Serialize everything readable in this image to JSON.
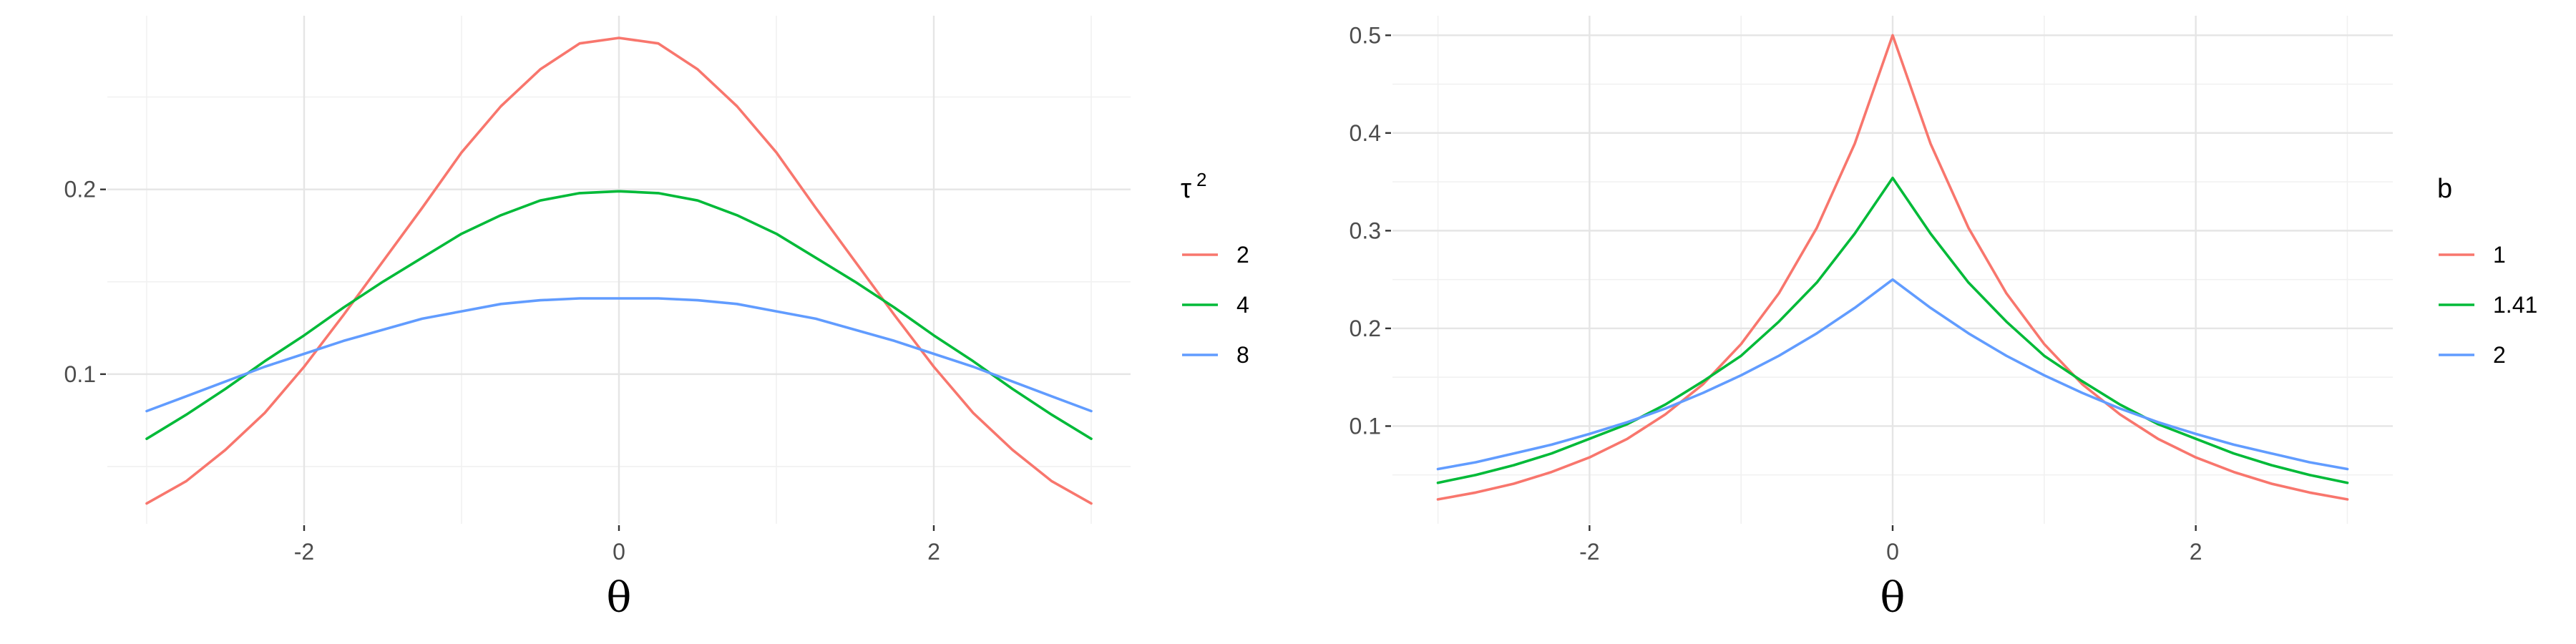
{
  "chart_data": [
    {
      "type": "line",
      "title": "",
      "xlabel": "θ",
      "ylabel": "",
      "xlim": [
        -3.25,
        3.25
      ],
      "ylim": [
        0.019,
        0.294
      ],
      "x_ticks": [
        -2,
        0,
        2
      ],
      "x_tick_labels": [
        "-2",
        "0",
        "2"
      ],
      "y_ticks": [
        0.1,
        0.2
      ],
      "y_tick_labels": [
        "0.1",
        "0.2"
      ],
      "grid": true,
      "legend": {
        "position": "right",
        "title": "τ",
        "title_superscript": "2"
      },
      "x": [
        -3,
        -2.75,
        -2.5,
        -2.25,
        -2,
        -1.75,
        -1.5,
        -1.25,
        -1,
        -0.75,
        -0.5,
        -0.25,
        0,
        0.25,
        0.5,
        0.75,
        1,
        1.25,
        1.5,
        1.75,
        2,
        2.25,
        2.5,
        2.75,
        3
      ],
      "series": [
        {
          "name": "2",
          "color": "#F8766D",
          "values": [
            0.03,
            0.042,
            0.059,
            0.079,
            0.104,
            0.132,
            0.161,
            0.19,
            0.22,
            0.245,
            0.265,
            0.279,
            0.282,
            0.279,
            0.265,
            0.245,
            0.22,
            0.19,
            0.161,
            0.132,
            0.104,
            0.079,
            0.059,
            0.042,
            0.03
          ]
        },
        {
          "name": "4",
          "color": "#00BA38",
          "values": [
            0.065,
            0.078,
            0.092,
            0.107,
            0.121,
            0.136,
            0.15,
            0.163,
            0.176,
            0.186,
            0.194,
            0.198,
            0.199,
            0.198,
            0.194,
            0.186,
            0.176,
            0.163,
            0.15,
            0.136,
            0.121,
            0.107,
            0.092,
            0.078,
            0.065
          ]
        },
        {
          "name": "8",
          "color": "#619CFF",
          "values": [
            0.08,
            0.088,
            0.096,
            0.104,
            0.111,
            0.118,
            0.124,
            0.13,
            0.134,
            0.138,
            0.14,
            0.141,
            0.141,
            0.141,
            0.14,
            0.138,
            0.134,
            0.13,
            0.124,
            0.118,
            0.111,
            0.104,
            0.096,
            0.088,
            0.08
          ]
        }
      ]
    },
    {
      "type": "line",
      "title": "",
      "xlabel": "θ",
      "ylabel": "",
      "xlim": [
        -3.3,
        3.3
      ],
      "ylim": [
        0.0,
        0.52
      ],
      "x_ticks": [
        -2,
        0,
        2
      ],
      "x_tick_labels": [
        "-2",
        "0",
        "2"
      ],
      "y_ticks": [
        0.1,
        0.2,
        0.3,
        0.4,
        0.5
      ],
      "y_tick_labels": [
        "0.1",
        "0.2",
        "0.3",
        "0.4",
        "0.5"
      ],
      "grid": true,
      "legend": {
        "position": "right",
        "title": "b",
        "title_superscript": ""
      },
      "x": [
        -3,
        -2.75,
        -2.5,
        -2.25,
        -2,
        -1.75,
        -1.5,
        -1.25,
        -1,
        -0.75,
        -0.5,
        -0.25,
        0,
        0.25,
        0.5,
        0.75,
        1,
        1.25,
        1.5,
        1.75,
        2,
        2.25,
        2.5,
        2.75,
        3
      ],
      "series": [
        {
          "name": "1",
          "color": "#F8766D",
          "values": [
            0.025,
            0.032,
            0.041,
            0.053,
            0.068,
            0.087,
            0.112,
            0.143,
            0.184,
            0.236,
            0.303,
            0.389,
            0.5,
            0.389,
            0.303,
            0.236,
            0.184,
            0.143,
            0.112,
            0.087,
            0.068,
            0.053,
            0.041,
            0.032,
            0.025
          ]
        },
        {
          "name": "1.41",
          "color": "#00BA38",
          "values": [
            0.042,
            0.05,
            0.06,
            0.072,
            0.087,
            0.102,
            0.122,
            0.146,
            0.172,
            0.207,
            0.247,
            0.297,
            0.354,
            0.297,
            0.247,
            0.207,
            0.172,
            0.146,
            0.122,
            0.102,
            0.087,
            0.072,
            0.06,
            0.05,
            0.042
          ]
        },
        {
          "name": "2",
          "color": "#619CFF",
          "values": [
            0.056,
            0.063,
            0.072,
            0.081,
            0.092,
            0.104,
            0.118,
            0.134,
            0.152,
            0.172,
            0.195,
            0.221,
            0.25,
            0.221,
            0.195,
            0.172,
            0.152,
            0.134,
            0.118,
            0.104,
            0.092,
            0.081,
            0.072,
            0.063,
            0.056
          ]
        }
      ]
    }
  ]
}
